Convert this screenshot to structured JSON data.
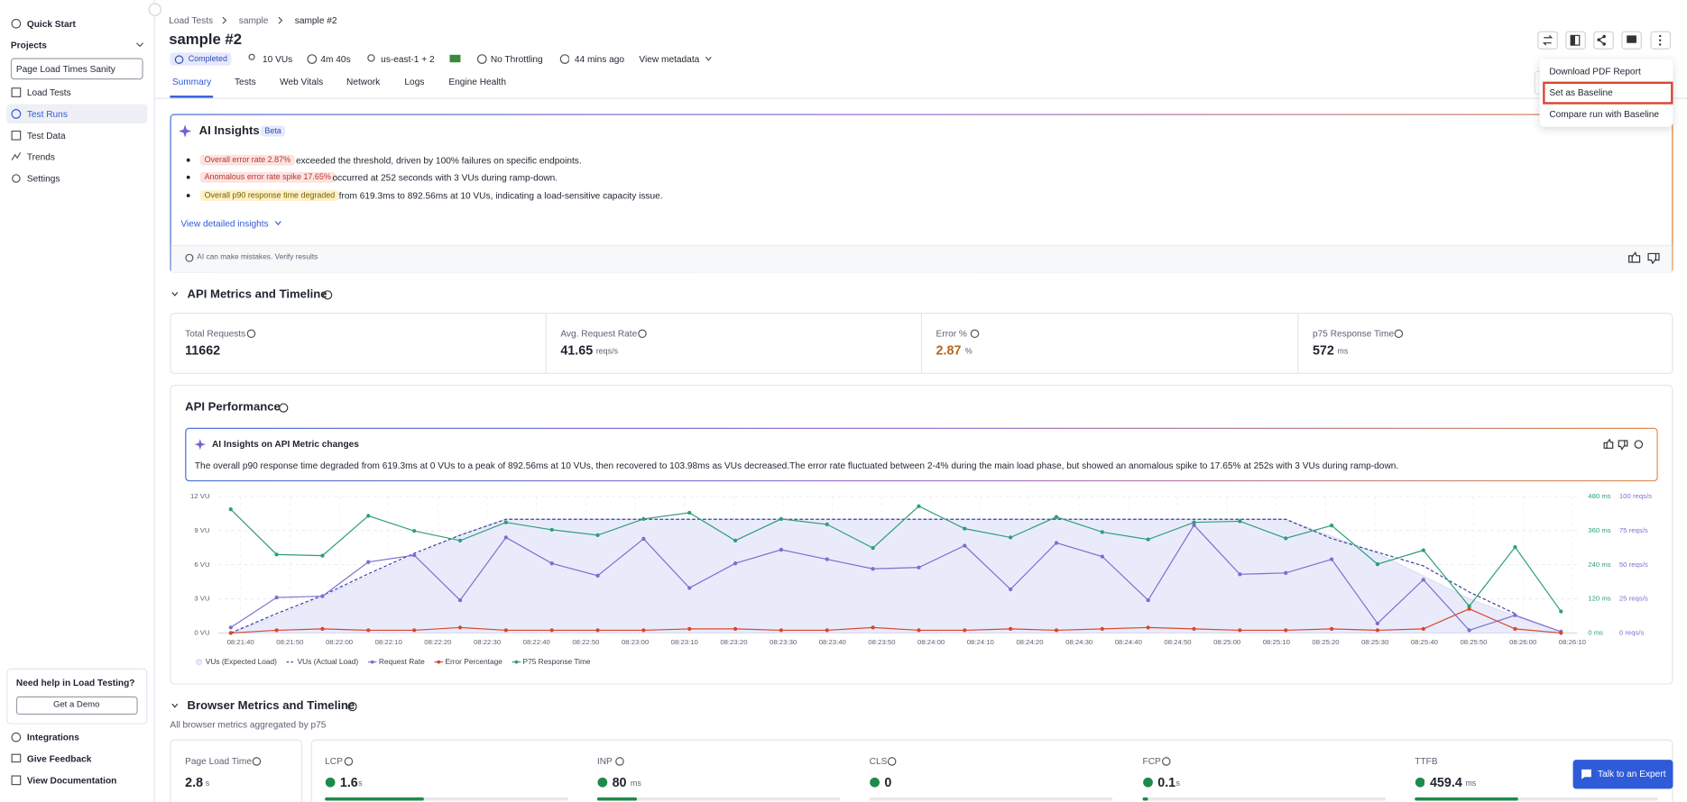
{
  "sidebar": {
    "quick_start": "Quick Start",
    "projects": "Projects",
    "project_select": "Page Load Times Sanity",
    "nav": [
      "Load Tests",
      "Test Runs",
      "Test Data",
      "Trends",
      "Settings"
    ],
    "help": {
      "title": "Need help in Load Testing?",
      "button": "Get a Demo"
    },
    "footer": [
      "Integrations",
      "Give Feedback",
      "View Documentation"
    ]
  },
  "header": {
    "breadcrumb": [
      "Load Tests",
      "sample",
      "sample #2"
    ],
    "title": "sample #2",
    "status": "Completed",
    "vus": "10 VUs",
    "duration": "4m 40s",
    "region": "us-east-1 + 2",
    "throttling": "No Throttling",
    "time_ago": "44 mins ago",
    "view_metadata": "View metadata",
    "tabs": [
      "Summary",
      "Tests",
      "Web Vitals",
      "Network",
      "Logs",
      "Engine Health"
    ]
  },
  "menu": [
    "Download PDF Report",
    "Set as Baseline",
    "Compare run with Baseline"
  ],
  "ai_insights": {
    "title": "AI Insights",
    "badge": "Beta",
    "items": [
      {
        "tag": "Overall error rate 2.87%",
        "text": "exceeded the threshold, driven by 100% failures on specific endpoints."
      },
      {
        "tag": "Anomalous error rate spike 17.65%",
        "text": "occurred at 252 seconds with 3 VUs during ramp-down."
      },
      {
        "tag": "Overall p90 response time degraded",
        "text": "from 619.3ms to 892.56ms at 10 VUs, indicating a load-sensitive capacity issue."
      }
    ],
    "link": "View detailed insights",
    "disclaimer": "AI can make mistakes. Verify results"
  },
  "api_metrics": {
    "title": "API Metrics and Timeline",
    "stats": [
      {
        "label": "Total Requests",
        "value": "11662"
      },
      {
        "label": "Avg. Request Rate",
        "value": "41.65",
        "unit": "reqs/s"
      },
      {
        "label": "Error %",
        "value": "2.87",
        "unit": "%"
      },
      {
        "label": "p75 Response Time",
        "value": "572",
        "unit": "ms"
      }
    ]
  },
  "api_performance": {
    "insight_title": "AI Insights on API Metric changes",
    "insight_text": "The overall p90 response time degraded from 619.3ms at 0 VUs to a peak of 892.56ms at 10 VUs, then recovered to 103.98ms as VUs decreased.The error rate fluctuated between 2-4% during the main load phase, but showed an anomalous spike to 17.65% at 252s with 3 VUs during ramp-down."
  },
  "chart_data": {
    "type": "line",
    "title": "API Performance",
    "x": [
      -2,
      7.3,
      16.6,
      25.9,
      35.2,
      44.5,
      53.8,
      63.1,
      72.4,
      81.7,
      91,
      100.3,
      109.6,
      118.9,
      128.2,
      137.5,
      146.8,
      156.1,
      165.4,
      174.7,
      184,
      193.3,
      202.6,
      211.9,
      221.2,
      230.5,
      239.8,
      249.1,
      258.4,
      267.7
    ],
    "xlim": [
      -4.5,
      271
    ],
    "xticks": [
      {
        "value": 0,
        "label": "08:21:40"
      },
      {
        "value": 10,
        "label": "08:21:50"
      },
      {
        "value": 20,
        "label": "08:22:00"
      },
      {
        "value": 30,
        "label": "08:22:10"
      },
      {
        "value": 40,
        "label": "08:22:20"
      },
      {
        "value": 50,
        "label": "08:22:30"
      },
      {
        "value": 60,
        "label": "08:22:40"
      },
      {
        "value": 70,
        "label": "08:22:50"
      },
      {
        "value": 80,
        "label": "08:23:00"
      },
      {
        "value": 90,
        "label": "08:23:10"
      },
      {
        "value": 100,
        "label": "08:23:20"
      },
      {
        "value": 110,
        "label": "08:23:30"
      },
      {
        "value": 120,
        "label": "08:23:40"
      },
      {
        "value": 130,
        "label": "08:23:50"
      },
      {
        "value": 140,
        "label": "08:24:00"
      },
      {
        "value": 150,
        "label": "08:24:10"
      },
      {
        "value": 160,
        "label": "08:24:20"
      },
      {
        "value": 170,
        "label": "08:24:30"
      },
      {
        "value": 180,
        "label": "08:24:40"
      },
      {
        "value": 190,
        "label": "08:24:50"
      },
      {
        "value": 200,
        "label": "08:25:00"
      },
      {
        "value": 210,
        "label": "08:25:10"
      },
      {
        "value": 220,
        "label": "08:25:20"
      },
      {
        "value": 230,
        "label": "08:25:30"
      },
      {
        "value": 240,
        "label": "08:25:40"
      },
      {
        "value": 250,
        "label": "08:25:50"
      },
      {
        "value": 260,
        "label": "08:26:00"
      },
      {
        "value": 270,
        "label": "08:26:10"
      }
    ],
    "ylim": [
      0,
      12
    ],
    "yticks": [
      {
        "value": 0,
        "label": "0 VU"
      },
      {
        "value": 3,
        "label": "3 VU"
      },
      {
        "value": 6,
        "label": "6 VU"
      },
      {
        "value": 9,
        "label": "9 VU"
      },
      {
        "value": 12,
        "label": "12 VU"
      }
    ],
    "y2lim": [
      0,
      480
    ],
    "y2ticks": [
      {
        "value": 0,
        "label": "0 ms"
      },
      {
        "value": 120,
        "label": "120 ms"
      },
      {
        "value": 240,
        "label": "240 ms"
      },
      {
        "value": 360,
        "label": "360 ms"
      },
      {
        "value": 480,
        "label": "480 ms"
      }
    ],
    "y2color": "#2f9e7a",
    "y3lim": [
      0,
      100
    ],
    "y3ticks": [
      {
        "value": 0,
        "label": "0 reqs/s"
      },
      {
        "value": 25,
        "label": "25 reqs/s"
      },
      {
        "value": 50,
        "label": "50 reqs/s"
      },
      {
        "value": 75,
        "label": "75 reqs/s"
      },
      {
        "value": 100,
        "label": "100 reqs/s"
      }
    ],
    "y3color": "#7b6fd0",
    "grid": true,
    "legend": "bottom-left",
    "series": [
      {
        "name": "VUs (Expected Load)",
        "color": "#e9ebfb",
        "style": "area",
        "axis": "y",
        "values": [
          0,
          1.5,
          3.2,
          5,
          6.8,
          8.6,
          10,
          10,
          10,
          10,
          10,
          10,
          10,
          10,
          10,
          10,
          10,
          10,
          10,
          10,
          10,
          10,
          10,
          10,
          8.5,
          7,
          5,
          3,
          1.5,
          0
        ]
      },
      {
        "name": "VUs (Actual Load)",
        "color": "#3a3f9e",
        "style": "dashed",
        "axis": "y",
        "values": [
          0,
          1.7,
          3.3,
          5.2,
          7,
          8.6,
          10,
          10,
          10,
          10,
          10,
          10,
          10,
          10,
          10,
          10,
          10,
          10,
          10,
          10,
          10,
          10,
          10,
          10,
          8.3,
          7.1,
          5.9,
          3.6,
          1.7,
          null
        ]
      },
      {
        "name": "Request Rate",
        "color": "#7b6fd0",
        "style": "markers",
        "axis": "y3",
        "values": [
          4,
          26,
          27,
          52,
          57,
          24,
          70,
          51,
          42,
          69,
          33,
          51,
          61,
          54,
          47,
          48,
          64,
          32,
          66,
          56,
          24,
          79,
          43,
          44,
          54,
          7,
          39,
          2,
          13,
          1
        ]
      },
      {
        "name": "Error Percentage",
        "color": "#d9472b",
        "style": "markers",
        "axis": "y3",
        "values": [
          0,
          2,
          3,
          2,
          2,
          4,
          2,
          2,
          2,
          2,
          3,
          3,
          2,
          2,
          4,
          2,
          2,
          3,
          2,
          3,
          4,
          3,
          2,
          2,
          3,
          2,
          3,
          17.65,
          3,
          0
        ]
      },
      {
        "name": "P75 Response Time",
        "color": "#2f9e7a",
        "style": "markers",
        "axis": "y2",
        "values": [
          435,
          276,
          272,
          412,
          359,
          325,
          389,
          363,
          344,
          401,
          423,
          325,
          401,
          382,
          299,
          446,
          367,
          336,
          408,
          355,
          329,
          389,
          393,
          333,
          378,
          242,
          291,
          94,
          302,
          76
        ]
      }
    ]
  },
  "browser_metrics": {
    "title": "Browser Metrics and Timeline",
    "subtitle": "All browser metrics aggregated by p75",
    "cards": [
      {
        "label": "Page Load Time",
        "value": "2.8",
        "unit": "s"
      },
      {
        "label": "LCP",
        "value": "1.6",
        "unit": "s"
      },
      {
        "label": "INP",
        "value": "80",
        "unit": "ms"
      },
      {
        "label": "CLS",
        "value": "0"
      },
      {
        "label": "FCP",
        "value": "0.1",
        "unit": "s"
      },
      {
        "label": "TTFB",
        "value": "459.4",
        "unit": "ms"
      }
    ]
  },
  "expert_button": "Talk to an Expert"
}
